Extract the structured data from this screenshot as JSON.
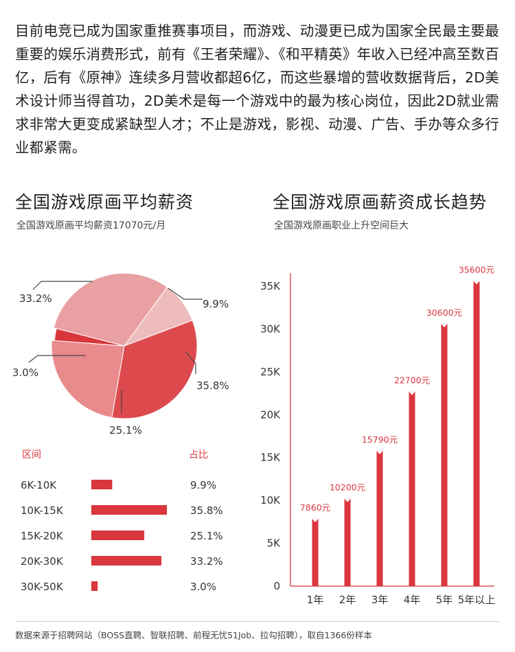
{
  "intro_text": "目前电竞已成为国家重推赛事项目，而游戏、动漫更已成为国家全民最主要最重要的娱乐消费形式，前有《王者荣耀》、《和平精英》年收入已经冲高至数百亿，后有《原神》连续多月营收都超6亿，而这些暴增的营收数据背后，2D美术设计师当得首功，2D美术是每一个游戏中的最为核心岗位，因此2D就业需求非常大更变成紧缺型人才；不止是游戏，影视、动漫、广告、手办等众多行业都紧需。",
  "footer_text": "数据来源于招聘网站（BOSS直聘、智联招聘、前程无忧51Job、拉勾招聘），取自1366份样本",
  "colors": {
    "accent": "#d9363e",
    "grid_axis": "#d9363e"
  },
  "chart_data": [
    {
      "type": "pie",
      "title": "全国游戏原画平均薪资",
      "subtitle": "全国游戏原画平均薪资17070元/月",
      "slices": [
        {
          "label": "9.9%",
          "value": 9.9,
          "color": "#efbcbe"
        },
        {
          "label": "35.8%",
          "value": 35.8,
          "color": "#dc4a4e"
        },
        {
          "label": "25.1%",
          "value": 25.1,
          "color": "#e98a8d"
        },
        {
          "label": "3.0%",
          "value": 3.0,
          "color": "#d8363c"
        },
        {
          "label": "33.2%",
          "value": 33.2,
          "color": "#e9a0a2"
        }
      ],
      "table": {
        "col_range": "区间",
        "col_share": "占比",
        "rows": [
          {
            "range": "6K-10K",
            "share": "9.9%",
            "value": 9.9
          },
          {
            "range": "10K-15K",
            "share": "35.8%",
            "value": 35.8
          },
          {
            "range": "15K-20K",
            "share": "25.1%",
            "value": 25.1
          },
          {
            "range": "20K-30K",
            "share": "33.2%",
            "value": 33.2
          },
          {
            "range": "30K-50K",
            "share": "3.0%",
            "value": 3.0
          }
        ]
      }
    },
    {
      "type": "bar",
      "title": "全国游戏原画薪资成长趋势",
      "subtitle": "全国游戏原画职业上升空间巨大",
      "categories": [
        "1年",
        "2年",
        "3年",
        "4年",
        "5年",
        "5年以上"
      ],
      "values": [
        7860,
        10200,
        15790,
        22700,
        30600,
        35600
      ],
      "value_labels": [
        "7860元",
        "10200元",
        "15790元",
        "22700元",
        "30600元",
        "35600元"
      ],
      "ylim": [
        0,
        35000
      ],
      "yticks": [
        0,
        5000,
        10000,
        15000,
        20000,
        25000,
        30000,
        35000
      ],
      "ytick_labels": [
        "0",
        "5K",
        "10K",
        "15K",
        "20K",
        "25K",
        "30K",
        "35K"
      ],
      "xlabel": "",
      "ylabel": ""
    }
  ]
}
